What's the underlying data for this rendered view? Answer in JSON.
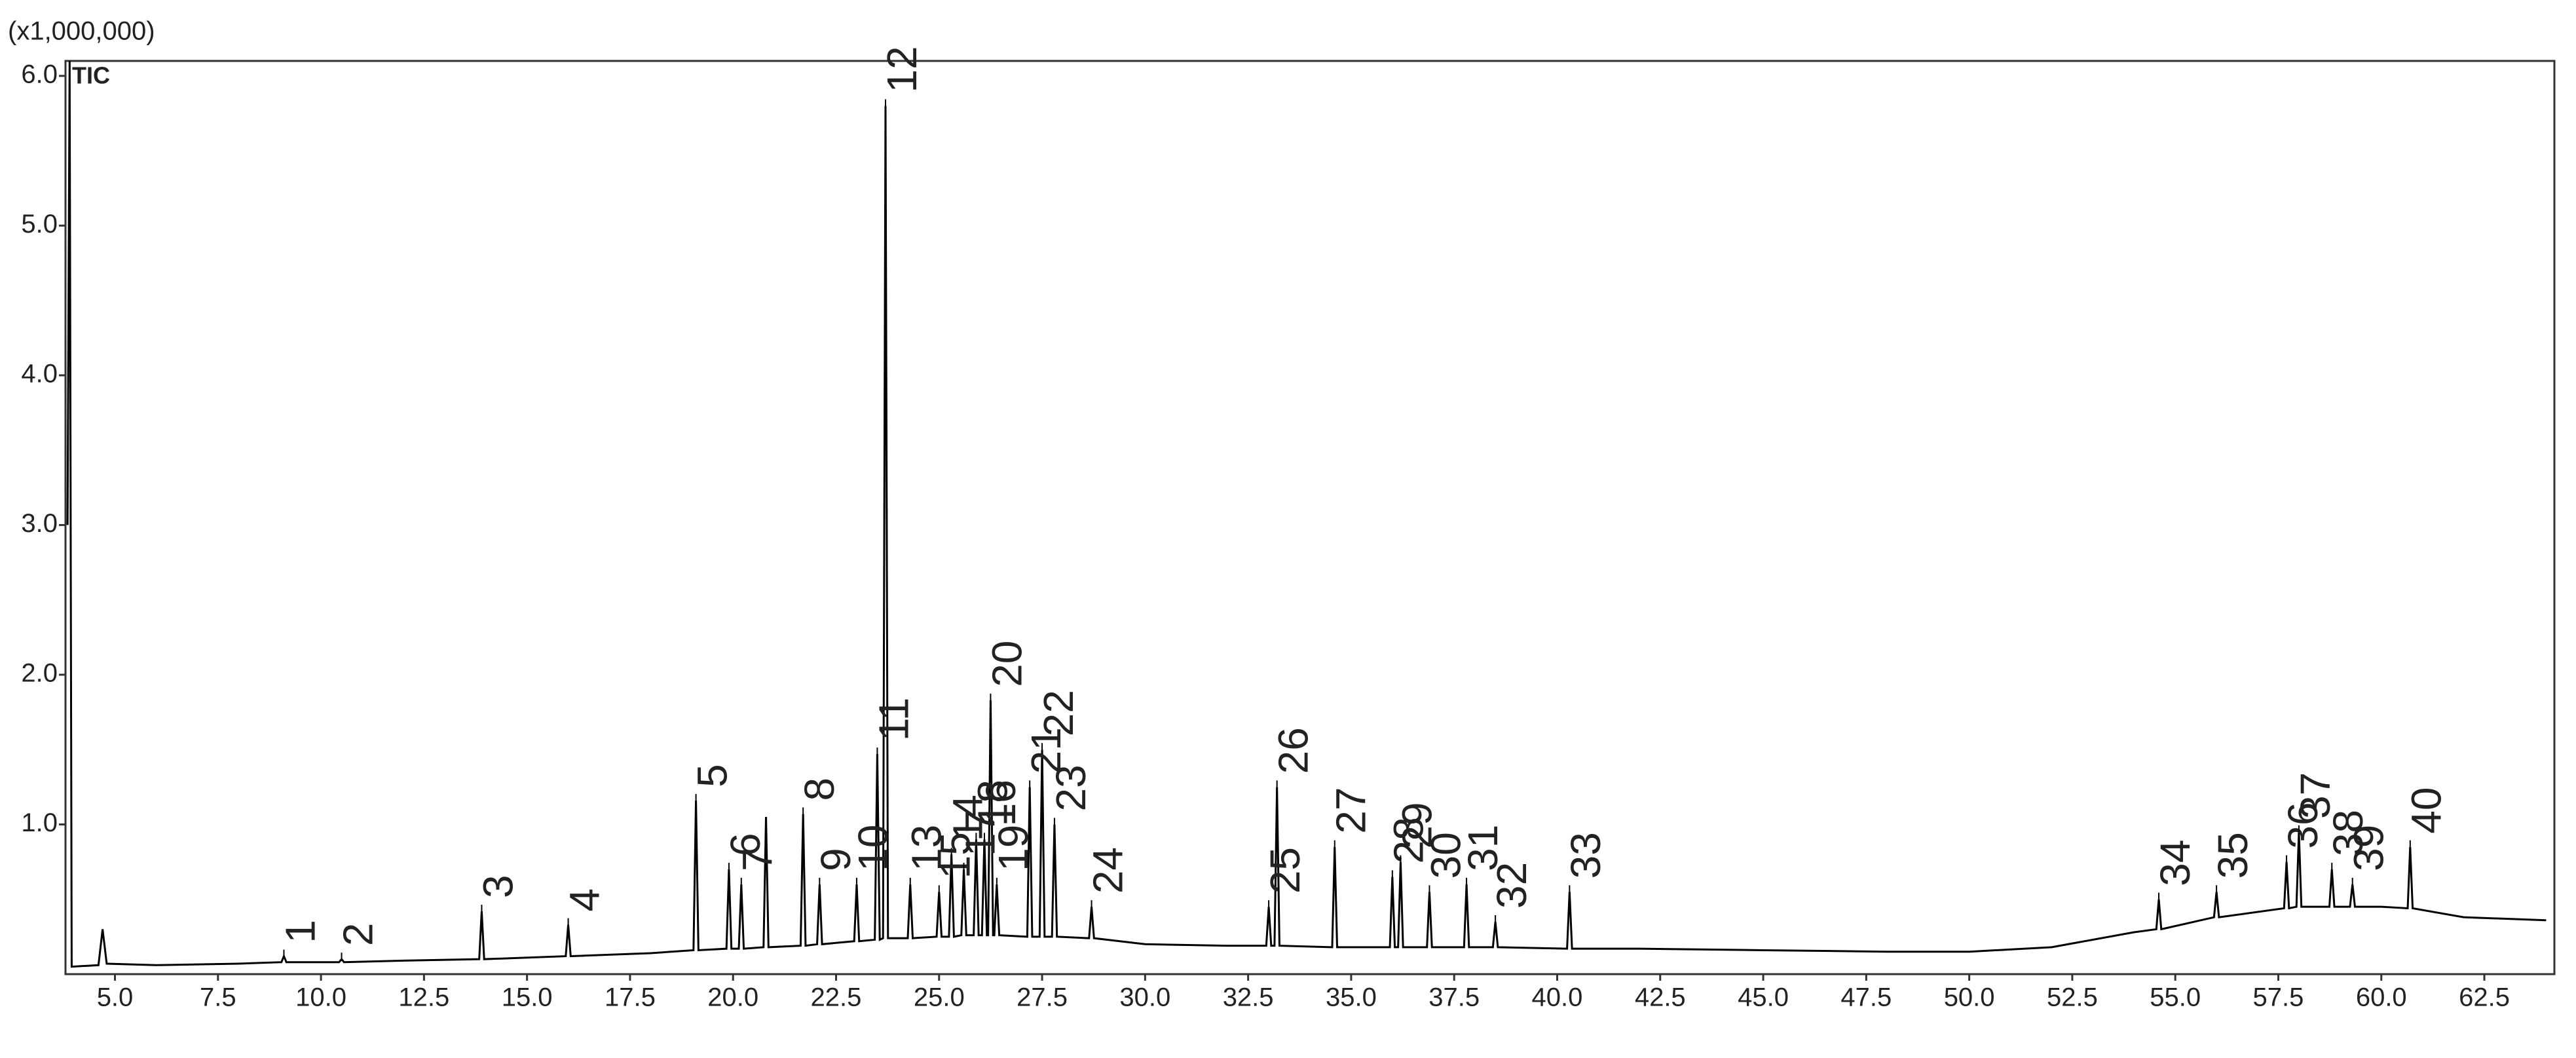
{
  "chart_data": {
    "type": "line",
    "y_unit_label": "(x1,000,000)",
    "x": [
      3.85,
      3.9,
      3.95,
      4.6,
      4.7,
      4.8,
      6.0,
      8.0,
      9.04,
      9.1,
      9.16,
      10.44,
      10.5,
      10.56,
      12.0,
      13.84,
      13.9,
      13.96,
      15.94,
      16.0,
      16.06,
      18.0,
      19.04,
      19.1,
      19.16,
      19.84,
      19.9,
      19.96,
      20.14,
      20.2,
      20.26,
      20.74,
      20.8,
      20.86,
      21.64,
      21.7,
      21.76,
      22.04,
      22.1,
      22.16,
      22.94,
      23.0,
      23.06,
      23.44,
      23.5,
      23.56,
      23.64,
      23.7,
      23.76,
      24.24,
      24.3,
      24.36,
      24.94,
      25.0,
      25.06,
      25.24,
      25.3,
      25.36,
      25.54,
      25.6,
      25.66,
      25.84,
      25.9,
      25.96,
      26.04,
      26.1,
      26.16,
      26.19,
      26.25,
      26.31,
      26.34,
      26.4,
      26.46,
      27.14,
      27.2,
      27.26,
      27.44,
      27.5,
      27.56,
      27.74,
      27.8,
      27.86,
      28.64,
      28.7,
      28.76,
      30.0,
      32.0,
      32.94,
      33.0,
      33.06,
      33.14,
      33.2,
      33.26,
      34.54,
      34.6,
      34.66,
      35.94,
      36.0,
      36.06,
      36.14,
      36.2,
      36.26,
      36.84,
      36.9,
      36.96,
      37.74,
      37.8,
      37.86,
      38.44,
      38.5,
      38.56,
      40.24,
      40.3,
      40.36,
      42.0,
      45.0,
      48.0,
      50.0,
      52.0,
      54.0,
      54.54,
      54.6,
      54.66,
      55.94,
      56.0,
      56.06,
      57.64,
      57.7,
      57.76,
      57.94,
      58.0,
      58.06,
      58.74,
      58.8,
      58.86,
      59.24,
      59.3,
      59.36,
      60.0,
      60.64,
      60.7,
      60.76,
      62.0,
      64.0
    ],
    "series": [
      {
        "name": "TIC",
        "color": "#000000",
        "values": [
          3.0,
          6.1,
          0.05,
          0.06,
          0.3,
          0.07,
          0.06,
          0.07,
          0.08,
          0.12,
          0.08,
          0.08,
          0.1,
          0.08,
          0.09,
          0.1,
          0.42,
          0.1,
          0.12,
          0.33,
          0.12,
          0.14,
          0.16,
          1.16,
          0.16,
          0.17,
          0.7,
          0.17,
          0.17,
          0.6,
          0.17,
          0.18,
          1.05,
          0.18,
          0.19,
          1.07,
          0.19,
          0.2,
          0.6,
          0.2,
          0.22,
          0.6,
          0.22,
          0.23,
          1.47,
          0.23,
          0.24,
          5.8,
          0.24,
          0.24,
          0.6,
          0.24,
          0.25,
          0.55,
          0.25,
          0.25,
          0.8,
          0.25,
          0.26,
          0.7,
          0.26,
          0.26,
          0.9,
          0.26,
          0.26,
          0.9,
          0.26,
          0.26,
          1.83,
          0.26,
          0.26,
          0.6,
          0.26,
          0.25,
          1.25,
          0.25,
          0.25,
          1.5,
          0.25,
          0.25,
          1.0,
          0.25,
          0.24,
          0.45,
          0.24,
          0.2,
          0.19,
          0.19,
          0.45,
          0.19,
          0.19,
          1.25,
          0.19,
          0.18,
          0.85,
          0.18,
          0.18,
          0.65,
          0.18,
          0.18,
          0.75,
          0.18,
          0.18,
          0.55,
          0.18,
          0.18,
          0.6,
          0.18,
          0.18,
          0.35,
          0.18,
          0.17,
          0.55,
          0.17,
          0.17,
          0.16,
          0.15,
          0.15,
          0.18,
          0.28,
          0.3,
          0.5,
          0.3,
          0.38,
          0.55,
          0.38,
          0.44,
          0.75,
          0.44,
          0.45,
          0.95,
          0.45,
          0.45,
          0.7,
          0.45,
          0.45,
          0.6,
          0.45,
          0.45,
          0.44,
          0.85,
          0.44,
          0.38,
          0.36
        ]
      }
    ],
    "peaks": [
      {
        "label": "1",
        "x": 9.1,
        "y": 0.12
      },
      {
        "label": "2",
        "x": 10.5,
        "y": 0.1
      },
      {
        "label": "3",
        "x": 13.9,
        "y": 0.42
      },
      {
        "label": "4",
        "x": 16.0,
        "y": 0.33
      },
      {
        "label": "5",
        "x": 19.1,
        "y": 1.16
      },
      {
        "label": "6",
        "x": 19.9,
        "y": 0.7
      },
      {
        "label": "7",
        "x": 20.2,
        "y": 0.6
      },
      {
        "label": "8",
        "x": 21.7,
        "y": 1.07
      },
      {
        "label": "9",
        "x": 22.1,
        "y": 0.6
      },
      {
        "label": "10",
        "x": 23.0,
        "y": 0.6
      },
      {
        "label": "11",
        "x": 23.5,
        "y": 1.47
      },
      {
        "label": "12",
        "x": 23.7,
        "y": 5.8
      },
      {
        "label": "13",
        "x": 24.3,
        "y": 0.6
      },
      {
        "label": "14",
        "x": 25.3,
        "y": 0.8
      },
      {
        "label": "15",
        "x": 25.0,
        "y": 0.55
      },
      {
        "label": "16",
        "x": 26.1,
        "y": 0.9
      },
      {
        "label": "17",
        "x": 25.6,
        "y": 0.7
      },
      {
        "label": "18",
        "x": 25.9,
        "y": 0.9
      },
      {
        "label": "19",
        "x": 26.4,
        "y": 0.6
      },
      {
        "label": "20",
        "x": 26.25,
        "y": 1.83
      },
      {
        "label": "21",
        "x": 27.2,
        "y": 1.25
      },
      {
        "label": "22",
        "x": 27.5,
        "y": 1.5
      },
      {
        "label": "23",
        "x": 27.8,
        "y": 1.0
      },
      {
        "label": "24",
        "x": 28.7,
        "y": 0.45
      },
      {
        "label": "25",
        "x": 33.0,
        "y": 0.45
      },
      {
        "label": "26",
        "x": 33.2,
        "y": 1.25
      },
      {
        "label": "27",
        "x": 34.6,
        "y": 0.85
      },
      {
        "label": "28",
        "x": 36.0,
        "y": 0.65
      },
      {
        "label": "29",
        "x": 36.2,
        "y": 0.75
      },
      {
        "label": "30",
        "x": 36.9,
        "y": 0.55
      },
      {
        "label": "31",
        "x": 37.8,
        "y": 0.6
      },
      {
        "label": "32",
        "x": 38.5,
        "y": 0.35
      },
      {
        "label": "33",
        "x": 40.3,
        "y": 0.55
      },
      {
        "label": "34",
        "x": 54.6,
        "y": 0.5
      },
      {
        "label": "35",
        "x": 56.0,
        "y": 0.55
      },
      {
        "label": "36",
        "x": 57.7,
        "y": 0.75
      },
      {
        "label": "37",
        "x": 58.0,
        "y": 0.95
      },
      {
        "label": "38",
        "x": 58.8,
        "y": 0.7
      },
      {
        "label": "39",
        "x": 59.3,
        "y": 0.6
      },
      {
        "label": "40",
        "x": 60.7,
        "y": 0.85
      }
    ],
    "xlim": [
      3.8,
      64.2
    ],
    "ylim": [
      0,
      6.1
    ],
    "xticks": [
      {
        "value": 5,
        "label": "5.0"
      },
      7.5,
      {
        "value": 10,
        "label": "10.0"
      },
      12.5,
      {
        "value": 15,
        "label": "15.0"
      },
      17.5,
      {
        "value": 20,
        "label": "20.0"
      },
      22.5,
      {
        "value": 25,
        "label": "25.0"
      },
      27.5,
      {
        "value": 30,
        "label": "30.0"
      },
      32.5,
      {
        "value": 35,
        "label": "35.0"
      },
      37.5,
      {
        "value": 40,
        "label": "40.0"
      },
      42.5,
      {
        "value": 45,
        "label": "45.0"
      },
      47.5,
      {
        "value": 50,
        "label": "50.0"
      },
      52.5,
      {
        "value": 55,
        "label": "55.0"
      },
      57.5,
      {
        "value": 60,
        "label": "60.0"
      },
      62.5
    ],
    "yticks": [
      {
        "value": 1,
        "label": "1.0"
      },
      {
        "value": 2,
        "label": "2.0"
      },
      {
        "value": 3,
        "label": "3.0"
      },
      {
        "value": 4,
        "label": "4.0"
      },
      {
        "value": 5,
        "label": "5.0"
      },
      {
        "value": 6,
        "label": "6.0"
      }
    ]
  }
}
